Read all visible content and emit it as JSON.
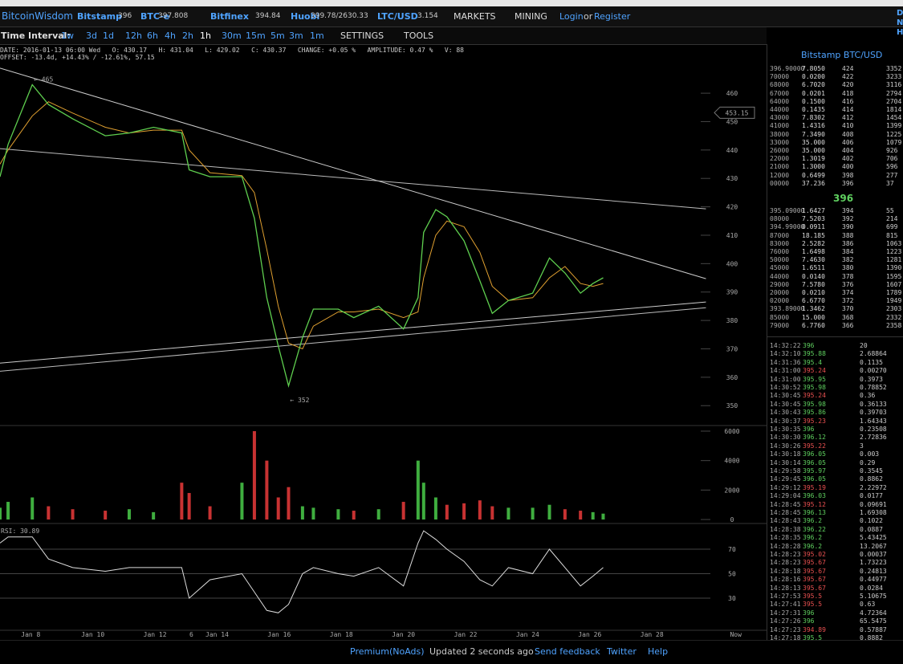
{
  "header": {
    "brand": "BitcoinWisdom",
    "exchanges": [
      {
        "name": "Bitstamp",
        "price": "396"
      },
      {
        "name": "BTC-e",
        "price": "397.808"
      },
      {
        "name": "Bitfinex",
        "price": "394.84"
      },
      {
        "name": "Huobi",
        "price": "399.78/2630.33"
      },
      {
        "name": "LTC/USD",
        "price": "3.154"
      }
    ],
    "menus": [
      "MARKETS",
      "MINING"
    ],
    "login": "Login",
    "or": "or",
    "register": "Register",
    "edge": [
      "D",
      "N",
      "H"
    ]
  },
  "toolbar": {
    "label": "Time Interval:",
    "intervals": [
      "1w",
      "3d",
      "1d",
      "12h",
      "6h",
      "4h",
      "2h",
      "1h",
      "30m",
      "15m",
      "5m",
      "3m",
      "1m"
    ],
    "selected": "1h",
    "settings": "SETTINGS",
    "tools": "TOOLS"
  },
  "info": {
    "line1": "DATE: 2016-01-13 06:00 Wed   O: 430.17   H: 431.04   L: 429.02   C: 430.37   CHANGE: +0.05 %   AMPLITUDE: 0.47 %   V: 88",
    "line2": "OFFSET: -13.4d, +14.43% / -12.61%, 57.15"
  },
  "chart_data": [
    {
      "type": "line",
      "color": "#5fcf4f",
      "ma_color": "#e0a030",
      "x": [
        7.01,
        7.27,
        8.05,
        8.57,
        9.35,
        10.4,
        11.17,
        11.95,
        12.86,
        13.1,
        13.77,
        14.8,
        15.2,
        15.6,
        15.97,
        16.3,
        16.75,
        17.1,
        17.9,
        18.4,
        19.2,
        20.0,
        20.47,
        20.65,
        21.04,
        21.4,
        21.95,
        22.46,
        22.86,
        23.38,
        24.16,
        24.7,
        25.2,
        25.7,
        26.1,
        26.43
      ],
      "values": [
        430.6,
        442,
        463,
        456,
        451,
        445,
        446,
        448,
        446,
        433,
        430.6,
        430.6,
        416,
        388,
        371,
        357,
        374,
        384,
        384,
        381,
        385,
        377,
        388,
        411,
        419,
        416.5,
        408,
        394,
        382.5,
        387,
        389.6,
        402,
        396.7,
        389.6,
        393,
        395
      ],
      "ma": [
        435,
        440,
        452,
        457,
        453,
        448,
        446,
        447,
        447,
        440,
        432,
        431,
        425,
        405,
        385,
        372,
        370,
        378,
        383,
        383,
        384,
        381,
        383,
        395,
        410,
        415,
        413,
        404,
        392,
        387,
        388,
        395,
        399,
        393,
        392,
        393
      ],
      "xlim": [
        7.01,
        31.69
      ],
      "ylim": [
        343,
        476.7
      ],
      "yticks": [
        350,
        360,
        370,
        380,
        390,
        400,
        410,
        420,
        430,
        440,
        450,
        460
      ],
      "trendlines": [
        {
          "x": [
            7.01,
            29.74
          ],
          "values": [
            468.8,
            394.7
          ],
          "color": "#cccccc"
        },
        {
          "x": [
            7.01,
            29.74
          ],
          "values": [
            440.5,
            419.3
          ],
          "color": "#bbbbbb"
        },
        {
          "x": [
            7.01,
            29.74
          ],
          "values": [
            365,
            386.5
          ],
          "color": "#cccccc"
        },
        {
          "x": [
            7.01,
            29.74
          ],
          "values": [
            362.1,
            384.5
          ],
          "color": "#bbbbbb"
        }
      ],
      "annotations": [
        {
          "x": 8.1,
          "y": 465,
          "text": "← 465"
        },
        {
          "x": 16.35,
          "y": 352,
          "text": "← 352"
        }
      ],
      "last": 453.15
    },
    {
      "type": "bar",
      "up_color": "#3fae3f",
      "down_color": "#c83232",
      "x": [
        7.01,
        7.27,
        8.05,
        8.57,
        9.35,
        10.4,
        11.17,
        11.95,
        12.86,
        13.1,
        13.77,
        14.8,
        15.2,
        15.6,
        15.97,
        16.3,
        16.75,
        17.1,
        17.9,
        18.4,
        19.2,
        20.0,
        20.47,
        20.65,
        21.04,
        21.4,
        21.95,
        22.46,
        22.86,
        23.38,
        24.16,
        24.7,
        25.2,
        25.7,
        26.1,
        26.43
      ],
      "values": [
        800,
        1200,
        1500,
        900,
        700,
        600,
        700,
        500,
        2500,
        1800,
        900,
        2500,
        6000,
        4000,
        1500,
        2200,
        900,
        800,
        700,
        600,
        700,
        1200,
        4000,
        2500,
        1500,
        1000,
        1100,
        1300,
        900,
        800,
        800,
        1000,
        700,
        600,
        500,
        400
      ],
      "xlim": [
        7.01,
        31.69
      ],
      "ylim": [
        -270,
        6380
      ],
      "yticks": [
        0,
        2000,
        4000,
        6000
      ]
    },
    {
      "type": "line",
      "label": "RSI: 30.89",
      "color": "#dddddd",
      "x": [
        7.01,
        7.27,
        8.05,
        8.57,
        9.35,
        10.4,
        11.17,
        11.95,
        12.86,
        13.1,
        13.77,
        14.8,
        15.2,
        15.6,
        15.97,
        16.3,
        16.75,
        17.1,
        17.9,
        18.4,
        19.2,
        20.0,
        20.47,
        20.65,
        21.04,
        21.4,
        21.95,
        22.46,
        22.86,
        23.38,
        24.16,
        24.7,
        25.2,
        25.7,
        26.1,
        26.43
      ],
      "values": [
        75,
        80,
        80,
        62,
        55,
        52,
        55,
        55,
        55,
        30,
        45,
        50,
        35,
        20,
        18,
        25,
        50,
        55,
        50,
        48,
        55,
        40,
        75,
        85,
        78,
        70,
        60,
        45,
        40,
        55,
        50,
        70,
        55,
        40,
        48,
        55
      ],
      "xlim": [
        7.01,
        31.69
      ],
      "ylim": [
        3.8,
        89
      ],
      "yticks": [
        30,
        50,
        70
      ],
      "xticks": [
        {
          "value": 8,
          "label": "Jan 8"
        },
        {
          "value": 10,
          "label": "Jan 10"
        },
        {
          "value": 12,
          "label": "Jan 12"
        },
        {
          "value": 13.17,
          "label": "6"
        },
        {
          "value": 14,
          "label": "Jan 14"
        },
        {
          "value": 16,
          "label": "Jan 16"
        },
        {
          "value": 18,
          "label": "Jan 18"
        },
        {
          "value": 20,
          "label": "Jan 20"
        },
        {
          "value": 22,
          "label": "Jan 22"
        },
        {
          "value": 24,
          "label": "Jan 24"
        },
        {
          "value": 26,
          "label": "Jan 26"
        },
        {
          "value": 28,
          "label": "Jan 28"
        },
        {
          "value": 30.7,
          "label": "Now"
        }
      ]
    }
  ],
  "orderbook": {
    "title": "Bitstamp BTC/USD",
    "mid": "396",
    "asks": [
      [
        "396.90000",
        "7.8050",
        "424",
        "3352"
      ],
      [
        "70000",
        "0.0200",
        "422",
        "3233"
      ],
      [
        "68000",
        "6.7020",
        "420",
        "3116"
      ],
      [
        "67000",
        "0.0201",
        "418",
        "2794"
      ],
      [
        "64000",
        "0.1500",
        "416",
        "2704"
      ],
      [
        "44000",
        "0.1435",
        "414",
        "1814"
      ],
      [
        "43000",
        "7.8302",
        "412",
        "1454"
      ],
      [
        "41000",
        "1.4316",
        "410",
        "1399"
      ],
      [
        "38000",
        "7.3490",
        "408",
        "1225"
      ],
      [
        "33000",
        "35.000",
        "406",
        "1079"
      ],
      [
        "26000",
        "35.000",
        "404",
        "926"
      ],
      [
        "22000",
        "1.3019",
        "402",
        "706"
      ],
      [
        "21000",
        "1.3000",
        "400",
        "596"
      ],
      [
        "12000",
        "0.6499",
        "398",
        "277"
      ],
      [
        "00000",
        "37.236",
        "396",
        "37"
      ]
    ],
    "bids": [
      [
        "395.09000",
        "1.6427",
        "394",
        "55"
      ],
      [
        "08000",
        "7.5203",
        "392",
        "214"
      ],
      [
        "394.99000",
        "0.0911",
        "390",
        "699"
      ],
      [
        "87000",
        "18.185",
        "388",
        "815"
      ],
      [
        "83000",
        "2.5282",
        "386",
        "1063"
      ],
      [
        "76000",
        "1.6498",
        "384",
        "1223"
      ],
      [
        "50000",
        "7.4630",
        "382",
        "1281"
      ],
      [
        "45000",
        "1.6511",
        "380",
        "1390"
      ],
      [
        "44000",
        "0.0140",
        "378",
        "1595"
      ],
      [
        "29000",
        "7.5780",
        "376",
        "1607"
      ],
      [
        "20000",
        "0.0210",
        "374",
        "1789"
      ],
      [
        "02000",
        "6.6770",
        "372",
        "1949"
      ],
      [
        "393.89000",
        "1.3462",
        "370",
        "2303"
      ],
      [
        "85000",
        "15.000",
        "368",
        "2332"
      ],
      [
        "79000",
        "6.7760",
        "366",
        "2358"
      ]
    ]
  },
  "trades": [
    {
      "time": "14:32:22",
      "price": "396",
      "amount": "20",
      "color": "#5fd05f"
    },
    {
      "time": "14:32:10",
      "price": "395.88",
      "amount": "2.68864",
      "color": "#5fd05f"
    },
    {
      "time": "14:31:36",
      "price": "395.4",
      "amount": "0.1135",
      "color": "#5fd05f"
    },
    {
      "time": "14:31:00",
      "price": "395.24",
      "amount": "0.00270",
      "color": "#e85050"
    },
    {
      "time": "14:31:00",
      "price": "395.95",
      "amount": "0.3973",
      "color": "#5fd05f"
    },
    {
      "time": "14:30:52",
      "price": "395.98",
      "amount": "0.78852",
      "color": "#5fd05f"
    },
    {
      "time": "14:30:45",
      "price": "395.24",
      "amount": "0.36",
      "color": "#e85050"
    },
    {
      "time": "14:30:45",
      "price": "395.98",
      "amount": "0.36133",
      "color": "#5fd05f"
    },
    {
      "time": "14:30:43",
      "price": "395.86",
      "amount": "0.39703",
      "color": "#5fd05f"
    },
    {
      "time": "14:30:37",
      "price": "395.23",
      "amount": "1.64343",
      "color": "#e85050"
    },
    {
      "time": "14:30:35",
      "price": "396",
      "amount": "0.23508",
      "color": "#5fd05f"
    },
    {
      "time": "14:30:30",
      "price": "396.12",
      "amount": "2.72836",
      "color": "#5fd05f"
    },
    {
      "time": "14:30:26",
      "price": "395.22",
      "amount": "3",
      "color": "#e85050"
    },
    {
      "time": "14:30:18",
      "price": "396.05",
      "amount": "0.003",
      "color": "#5fd05f"
    },
    {
      "time": "14:30:14",
      "price": "396.05",
      "amount": "0.29",
      "color": "#5fd05f"
    },
    {
      "time": "14:29:58",
      "price": "395.97",
      "amount": "0.3545",
      "color": "#5fd05f"
    },
    {
      "time": "14:29:45",
      "price": "396.05",
      "amount": "0.8862",
      "color": "#5fd05f"
    },
    {
      "time": "14:29:12",
      "price": "395.19",
      "amount": "2.22972",
      "color": "#e85050"
    },
    {
      "time": "14:29:04",
      "price": "396.03",
      "amount": "0.0177",
      "color": "#5fd05f"
    },
    {
      "time": "14:28:45",
      "price": "395.12",
      "amount": "0.09691",
      "color": "#e85050"
    },
    {
      "time": "14:28:45",
      "price": "396.13",
      "amount": "1.69308",
      "color": "#5fd05f"
    },
    {
      "time": "14:28:43",
      "price": "396.2",
      "amount": "0.1022",
      "color": "#5fd05f"
    },
    {
      "time": "14:28:38",
      "price": "396.22",
      "amount": "0.0887",
      "color": "#5fd05f"
    },
    {
      "time": "14:28:35",
      "price": "396.2",
      "amount": "5.43425",
      "color": "#5fd05f"
    },
    {
      "time": "14:28:28",
      "price": "396.2",
      "amount": "13.2067",
      "color": "#5fd05f"
    },
    {
      "time": "14:28:23",
      "price": "395.02",
      "amount": "0.00037",
      "color": "#e85050"
    },
    {
      "time": "14:28:23",
      "price": "395.67",
      "amount": "1.73223",
      "color": "#e85050"
    },
    {
      "time": "14:28:18",
      "price": "395.67",
      "amount": "0.24813",
      "color": "#e85050"
    },
    {
      "time": "14:28:16",
      "price": "395.67",
      "amount": "0.44977",
      "color": "#e85050"
    },
    {
      "time": "14:28:13",
      "price": "395.67",
      "amount": "0.0284",
      "color": "#e85050"
    },
    {
      "time": "14:27:53",
      "price": "395.5",
      "amount": "5.10675",
      "color": "#e85050"
    },
    {
      "time": "14:27:41",
      "price": "395.5",
      "amount": "0.63",
      "color": "#e85050"
    },
    {
      "time": "14:27:31",
      "price": "396",
      "amount": "4.72364",
      "color": "#5fd05f"
    },
    {
      "time": "14:27:26",
      "price": "396",
      "amount": "65.5475",
      "color": "#5fd05f"
    },
    {
      "time": "14:27:23",
      "price": "394.89",
      "amount": "0.57887",
      "color": "#e85050"
    },
    {
      "time": "14:27:18",
      "price": "395.5",
      "amount": "0.8882",
      "color": "#5fd05f"
    }
  ],
  "footer": {
    "premium": "Premium(NoAds)",
    "updated": "Updated 2 seconds ago",
    "feedback": "Send feedback",
    "twitter": "Twitter",
    "help": "Help"
  }
}
